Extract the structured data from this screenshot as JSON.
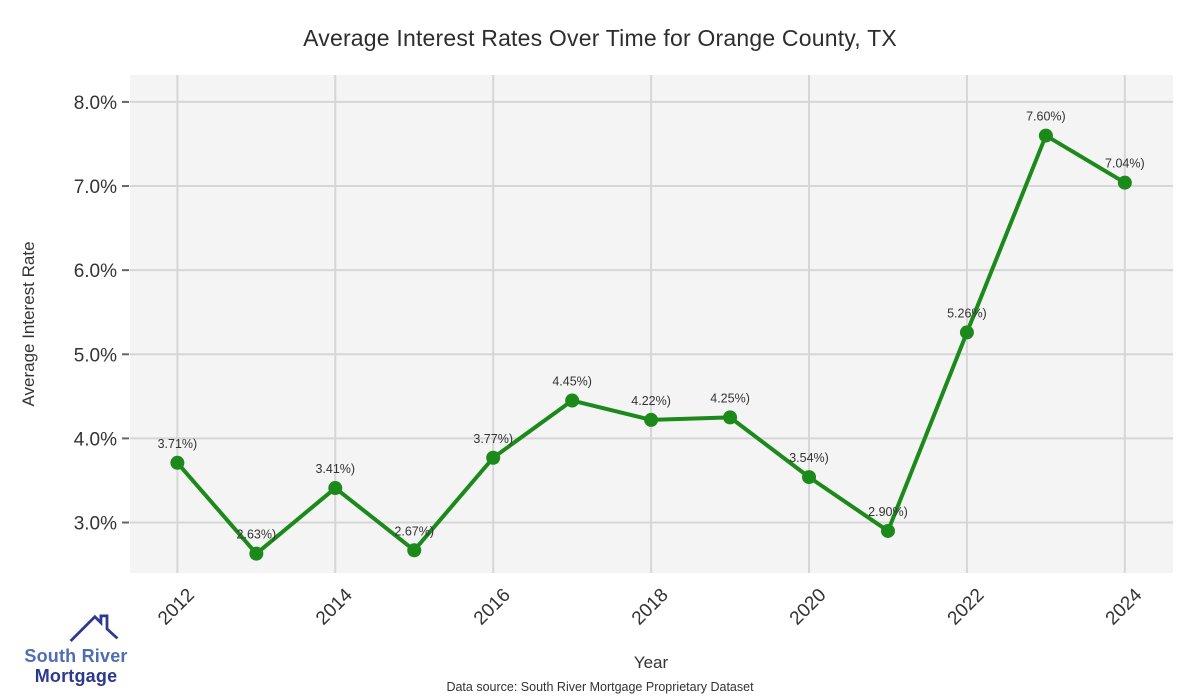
{
  "title": "Average Interest Rates Over Time for Orange County, TX",
  "footer": {
    "source": "Data source: South River Mortgage Proprietary Dataset"
  },
  "logo": {
    "line1": "South River",
    "line2": "Mortgage"
  },
  "chart_data": {
    "type": "line",
    "title": "Average Interest Rates Over Time for Orange County, TX",
    "xlabel": "Year",
    "ylabel": "Average Interest Rate",
    "x": [
      2012,
      2013,
      2014,
      2015,
      2016,
      2017,
      2018,
      2019,
      2020,
      2021,
      2022,
      2023,
      2024
    ],
    "values": [
      3.71,
      2.63,
      3.41,
      2.67,
      3.77,
      4.45,
      4.22,
      4.25,
      3.54,
      2.9,
      5.26,
      7.6,
      7.04
    ],
    "point_labels": [
      "3.71%)",
      "2.63%)",
      "3.41%)",
      "2.67%)",
      "3.77%)",
      "4.45%)",
      "4.22%)",
      "4.25%)",
      "3.54%)",
      "2.90%)",
      "5.26%)",
      "7.60%)",
      "7.04%)"
    ],
    "x_tick_values": [
      2012,
      2014,
      2016,
      2018,
      2020,
      2022,
      2024
    ],
    "x_tick_labels": [
      "2012",
      "2014",
      "2016",
      "2018",
      "2020",
      "2022",
      "2024"
    ],
    "y_tick_values": [
      3,
      4,
      5,
      6,
      7,
      8
    ],
    "y_tick_labels": [
      "3.0%",
      "4.0%",
      "5.0%",
      "6.0%",
      "7.0%",
      "8.0%"
    ],
    "xlim": [
      2011.4,
      2024.61
    ],
    "ylim": [
      2.4,
      8.32
    ],
    "grid": true,
    "legend": "none",
    "colors": {
      "line": "#1b8a1b",
      "plot_bg": "#f4f4f4",
      "grid": "#d6d6d6",
      "tick": "#666666",
      "text": "#333333"
    }
  }
}
